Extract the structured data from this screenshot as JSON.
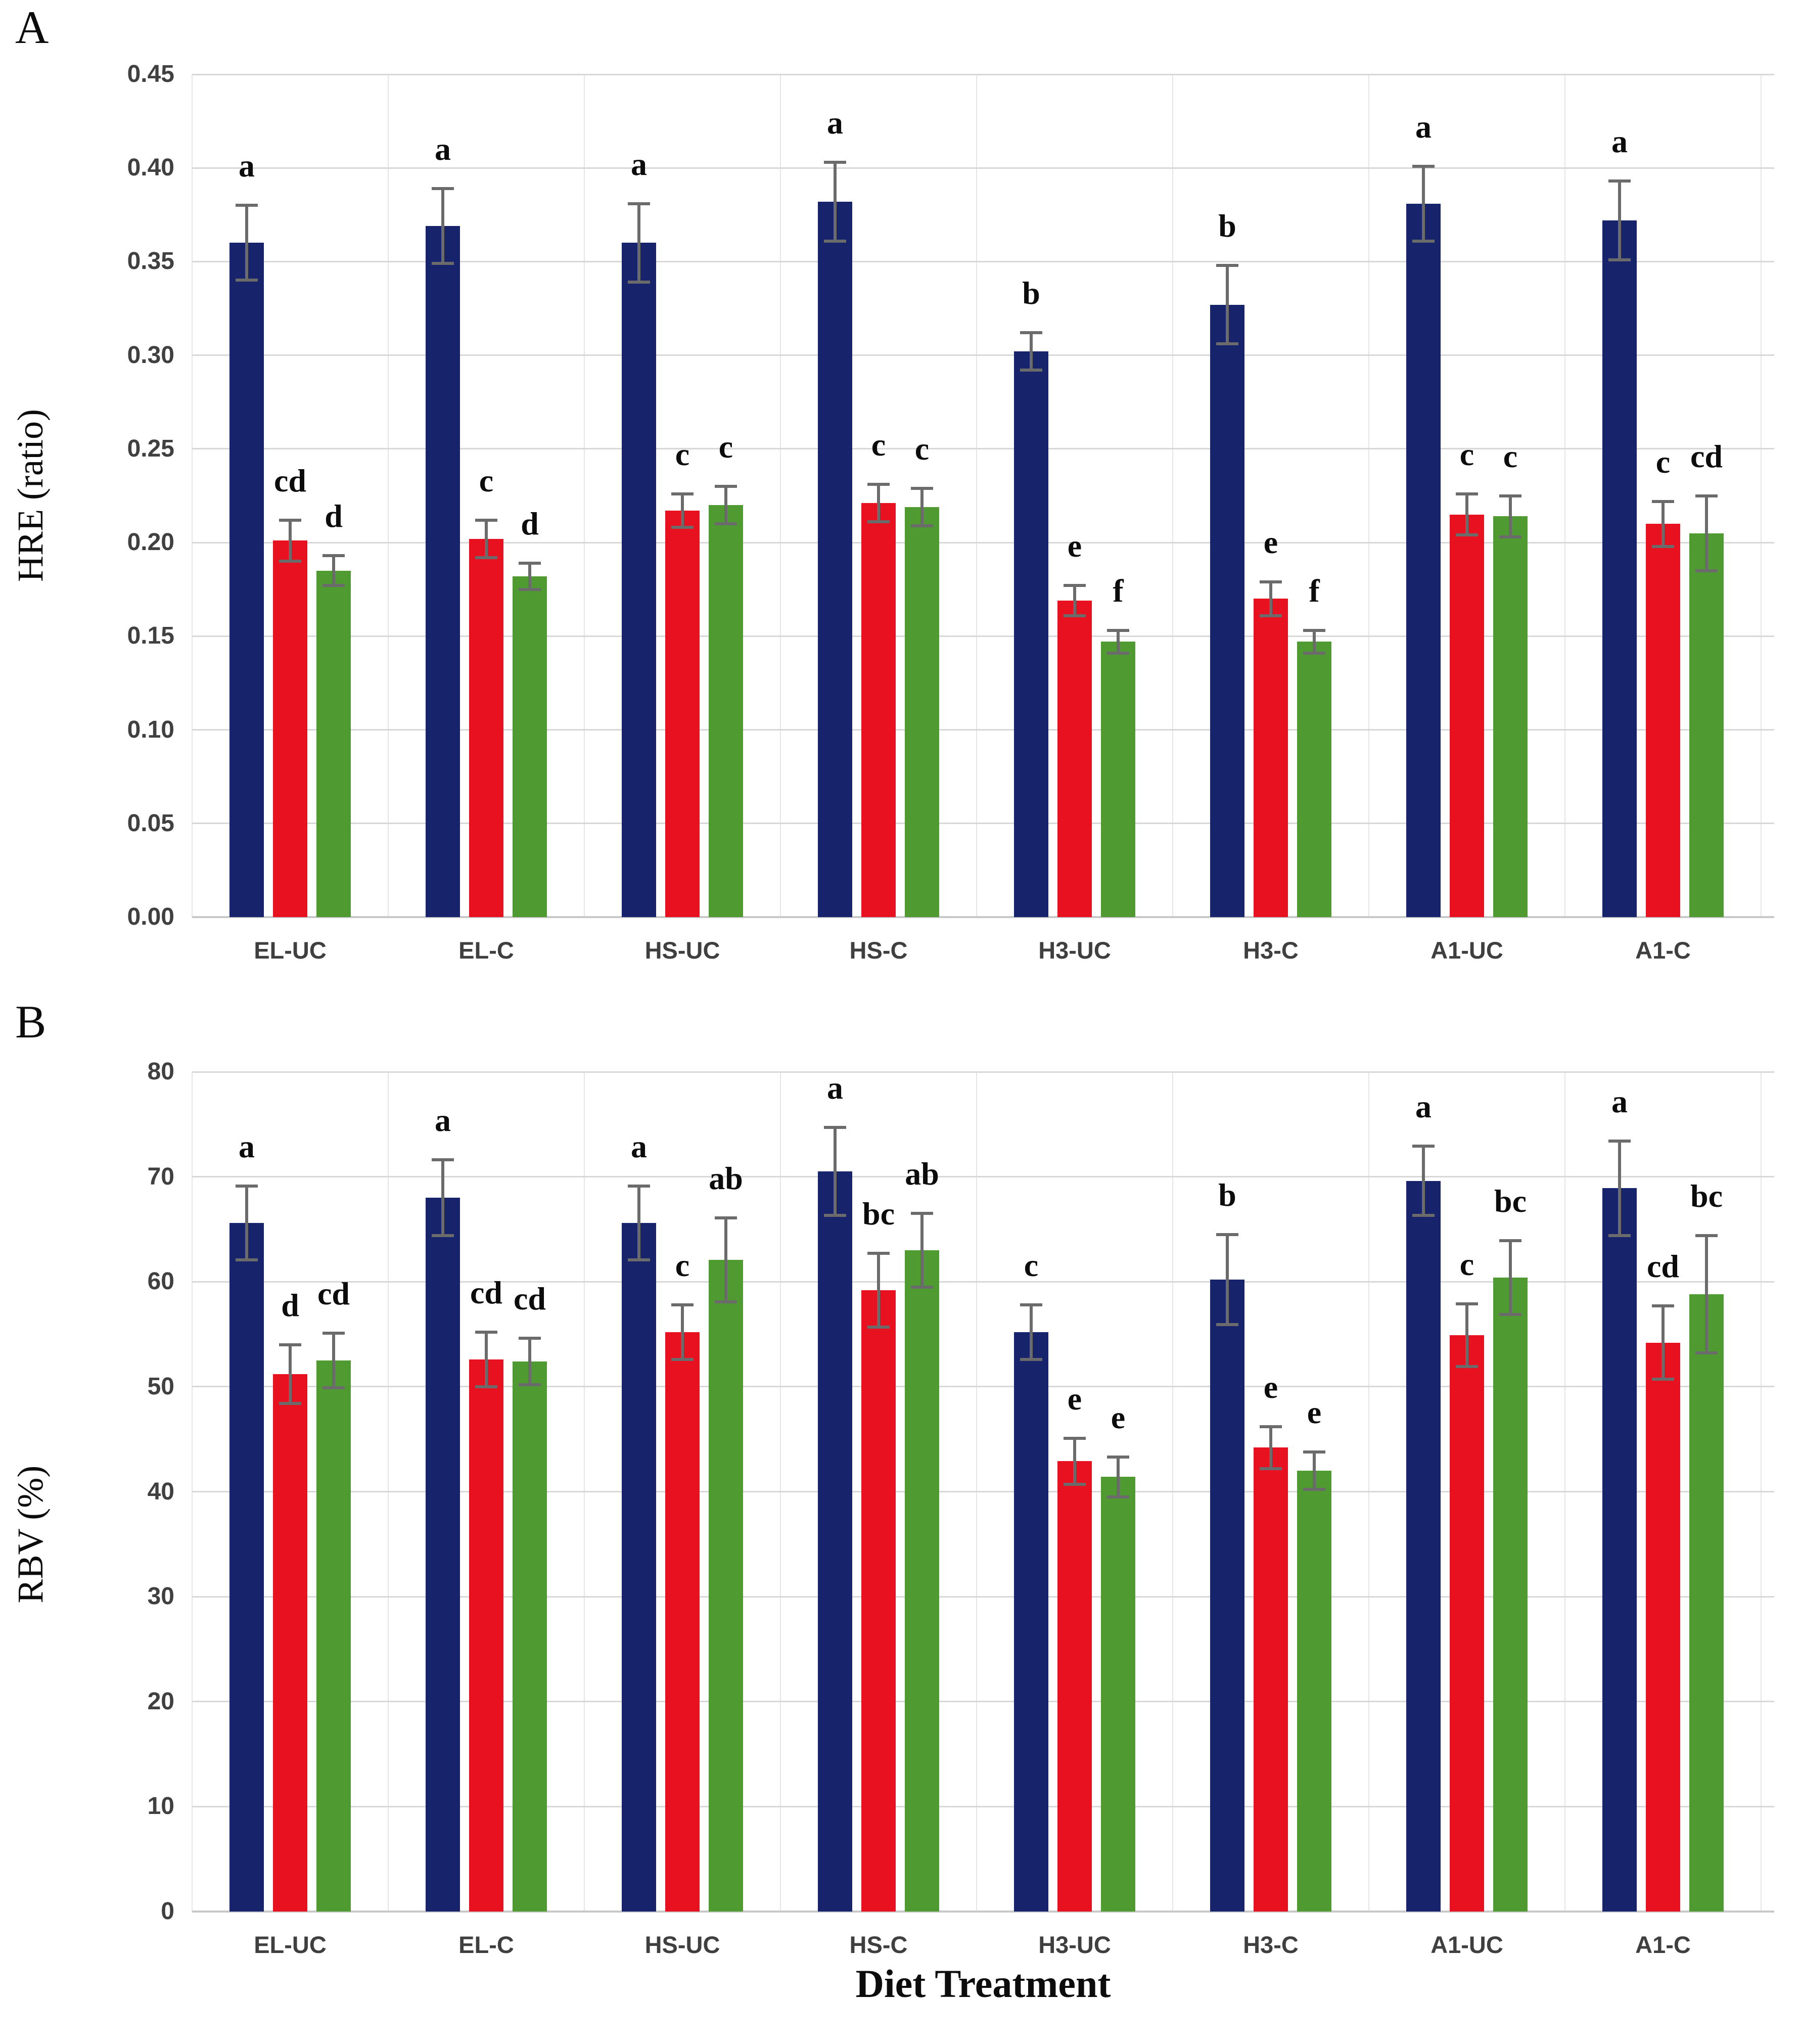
{
  "chart_data": [
    {
      "id": "A",
      "label": "A",
      "type": "bar",
      "title": "",
      "xlabel": "",
      "ylabel": "HRE (ratio)",
      "ylim": [
        0,
        0.45
      ],
      "ytick_step": 0.05,
      "grid": true,
      "legend": false,
      "y_ticks": [
        "0.00",
        "0.05",
        "0.10",
        "0.15",
        "0.20",
        "0.25",
        "0.30",
        "0.35",
        "0.40",
        "0.45"
      ],
      "categories": [
        "EL-UC",
        "EL-C",
        "HS-UC",
        "HS-C",
        "H3-UC",
        "H3-C",
        "A1-UC",
        "A1-C"
      ],
      "series": [
        {
          "name": "navy",
          "color": "#17246b",
          "values": [
            0.36,
            0.369,
            0.36,
            0.382,
            0.302,
            0.327,
            0.381,
            0.372
          ],
          "errors": [
            0.02,
            0.02,
            0.021,
            0.021,
            0.01,
            0.021,
            0.02,
            0.021
          ],
          "letters": [
            "a",
            "a",
            "a",
            "a",
            "b",
            "b",
            "a",
            "a"
          ]
        },
        {
          "name": "red",
          "color": "#e81120",
          "values": [
            0.201,
            0.202,
            0.217,
            0.221,
            0.169,
            0.17,
            0.215,
            0.21
          ],
          "errors": [
            0.011,
            0.01,
            0.009,
            0.01,
            0.008,
            0.009,
            0.011,
            0.012
          ],
          "letters": [
            "cd",
            "c",
            "c",
            "c",
            "e",
            "e",
            "c",
            "c"
          ]
        },
        {
          "name": "green",
          "color": "#4f9a31",
          "values": [
            0.185,
            0.182,
            0.22,
            0.219,
            0.147,
            0.147,
            0.214,
            0.205
          ],
          "errors": [
            0.008,
            0.007,
            0.01,
            0.01,
            0.006,
            0.006,
            0.011,
            0.02
          ],
          "letters": [
            "d",
            "d",
            "c",
            "c",
            "f",
            "f",
            "c",
            "cd"
          ]
        }
      ]
    },
    {
      "id": "B",
      "label": "B",
      "type": "bar",
      "title": "",
      "xlabel": "Diet Treatment",
      "ylabel": "RBV (%)",
      "ylim": [
        0,
        80
      ],
      "ytick_step": 10,
      "grid": true,
      "legend": false,
      "y_ticks": [
        "0",
        "10",
        "20",
        "30",
        "40",
        "50",
        "60",
        "70",
        "80"
      ],
      "categories": [
        "EL-UC",
        "EL-C",
        "HS-UC",
        "HS-C",
        "H3-UC",
        "H3-C",
        "A1-UC",
        "A1-C"
      ],
      "series": [
        {
          "name": "navy",
          "color": "#17246b",
          "values": [
            65.6,
            68.0,
            65.6,
            70.5,
            55.2,
            60.2,
            69.6,
            68.9
          ],
          "errors": [
            3.5,
            3.6,
            3.5,
            4.2,
            2.6,
            4.3,
            3.3,
            4.5
          ],
          "letters": [
            "a",
            "a",
            "a",
            "a",
            "c",
            "b",
            "a",
            "a"
          ]
        },
        {
          "name": "red",
          "color": "#e81120",
          "values": [
            51.2,
            52.6,
            55.2,
            59.2,
            42.9,
            44.2,
            54.9,
            54.2
          ],
          "errors": [
            2.8,
            2.6,
            2.6,
            3.5,
            2.2,
            2.0,
            3.0,
            3.5
          ],
          "letters": [
            "d",
            "cd",
            "c",
            "bc",
            "e",
            "e",
            "c",
            "cd"
          ]
        },
        {
          "name": "green",
          "color": "#4f9a31",
          "values": [
            52.5,
            52.4,
            62.1,
            63.0,
            41.4,
            42.0,
            60.4,
            58.8
          ],
          "errors": [
            2.6,
            2.2,
            4.0,
            3.5,
            1.9,
            1.8,
            3.5,
            5.6
          ],
          "letters": [
            "cd",
            "cd",
            "ab",
            "ab",
            "e",
            "e",
            "bc",
            "bc"
          ]
        }
      ]
    }
  ]
}
